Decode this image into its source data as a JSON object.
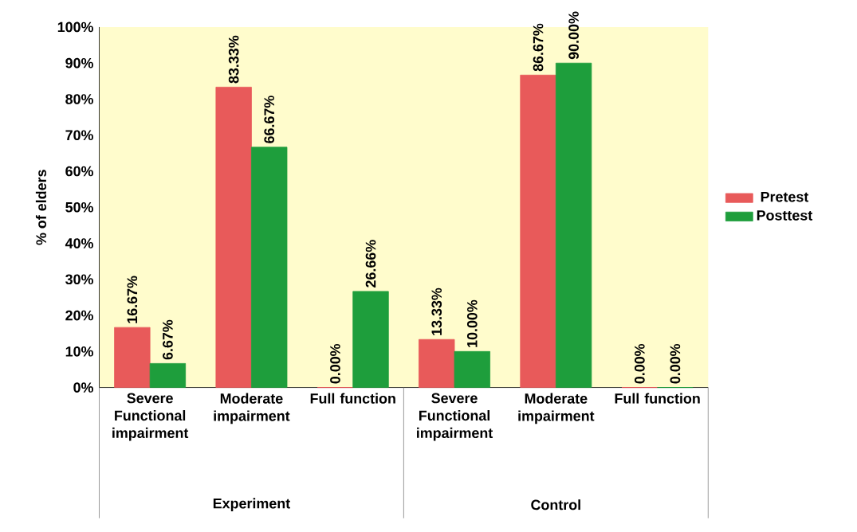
{
  "chart_data": {
    "type": "bar",
    "ylabel": "% of elders",
    "categories": [
      "Severe Functional impairment",
      "Moderate impairment",
      "Full function",
      "Severe Functional impairment",
      "Moderate impairment",
      "Full function"
    ],
    "series": [
      {
        "name": "Pretest",
        "color": "#e85a5a",
        "values": [
          16.67,
          83.33,
          0.0,
          13.33,
          86.67,
          0.0
        ],
        "value_labels": [
          "16.67%",
          "83.33%",
          "0.00%",
          "13.33%",
          "86.67%",
          "0.00%"
        ]
      },
      {
        "name": "Posttest",
        "color": "#1e9e3c",
        "values": [
          6.67,
          66.67,
          26.66,
          10.0,
          90.0,
          0.0
        ],
        "value_labels": [
          "6.67%",
          "66.67%",
          "26.66%",
          "10.00%",
          "90.00%",
          "0.00%"
        ]
      }
    ],
    "annotations": [
      "Experiment",
      "Control"
    ],
    "ylim": [
      0,
      100
    ],
    "yticks": [
      {
        "value": 0,
        "label": "0%"
      },
      {
        "value": 10,
        "label": "10%"
      },
      {
        "value": 20,
        "label": "20%"
      },
      {
        "value": 30,
        "label": "30%"
      },
      {
        "value": 40,
        "label": "40%"
      },
      {
        "value": 50,
        "label": "50%"
      },
      {
        "value": 60,
        "label": "60%"
      },
      {
        "value": 70,
        "label": "70%"
      },
      {
        "value": 80,
        "label": "80%"
      },
      {
        "value": 90,
        "label": "90%"
      },
      {
        "value": 100,
        "label": "100%"
      }
    ],
    "legend": "right",
    "grid": false
  }
}
